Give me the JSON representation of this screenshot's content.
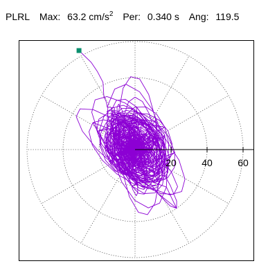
{
  "header": {
    "station": "PLRL",
    "max_label": "Max:",
    "max_value": "63.2 cm/s",
    "max_exp": "2",
    "per_label": "Per:",
    "per_value": "0.340 s",
    "ang_label": "Ang:",
    "ang_value": "119.5"
  },
  "colors": {
    "trace": "#8c00d4",
    "marker": "#0a8f6e",
    "grid": "#555555",
    "axis": "#000000"
  },
  "chart_data": {
    "type": "scatter",
    "subtype": "polar-particle-motion",
    "title": "",
    "radial_axis": {
      "ticks": [
        20,
        40,
        60
      ],
      "tick_labels": [
        "20",
        "40",
        "60"
      ],
      "max": 70,
      "angular_spokes_deg": [
        0,
        30,
        60,
        90,
        120,
        150,
        180,
        210,
        240,
        270,
        300,
        330
      ]
    },
    "grid": true,
    "max_radius": 63.2,
    "max_angle_deg": 119.5,
    "end_marker": {
      "r": 63.2,
      "angle_deg": 119.5
    }
  }
}
